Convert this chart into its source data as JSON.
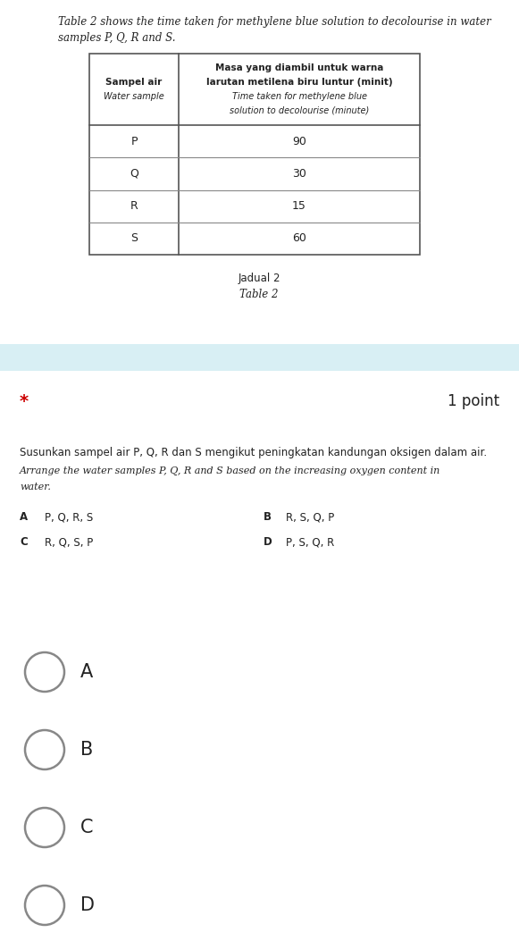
{
  "bg_color": "#f5f5f5",
  "top_bg": "#ffffff",
  "bottom_bg": "#ffffff",
  "separator_color": "#d8eff4",
  "intro_text_line1": "Table 2 shows the time taken for methylene blue solution to decolourise in water",
  "intro_text_line2": "samples P, Q, R and S.",
  "table_header_col1_line1": "Sampel air",
  "table_header_col1_line2": "Water sample",
  "table_header_col2_line1": "Masa yang diambil untuk warna",
  "table_header_col2_line2": "larutan metilena biru luntur (minit)",
  "table_header_col2_line3": "Time taken for methylene blue",
  "table_header_col2_line4": "solution to decolourise (minute)",
  "table_rows": [
    {
      "sample": "P",
      "value": "90"
    },
    {
      "sample": "Q",
      "value": "30"
    },
    {
      "sample": "R",
      "value": "15"
    },
    {
      "sample": "S",
      "value": "60"
    }
  ],
  "jadual_text": "Jadual 2",
  "table2_text": "Table 2",
  "star_color": "#cc0000",
  "points_text": "1 point",
  "question_malay": "Susunkan sampel air P, Q, R dan S mengikut peningkatan kandungan oksigen dalam air.",
  "question_english_line1": "Arrange the water samples P, Q, R and S based on the increasing oxygen content in",
  "question_english_line2": "water.",
  "options": [
    {
      "letter": "A",
      "text": "P, Q, R, S"
    },
    {
      "letter": "B",
      "text": "R, S, Q, P"
    },
    {
      "letter": "C",
      "text": "R, Q, S, P"
    },
    {
      "letter": "D",
      "text": "P, S, Q, R"
    }
  ],
  "choice_letters": [
    "A",
    "B",
    "C",
    "D"
  ],
  "text_color": "#222222",
  "table_border_color": "#555555",
  "table_line_color": "#888888",
  "circle_color": "#888888"
}
